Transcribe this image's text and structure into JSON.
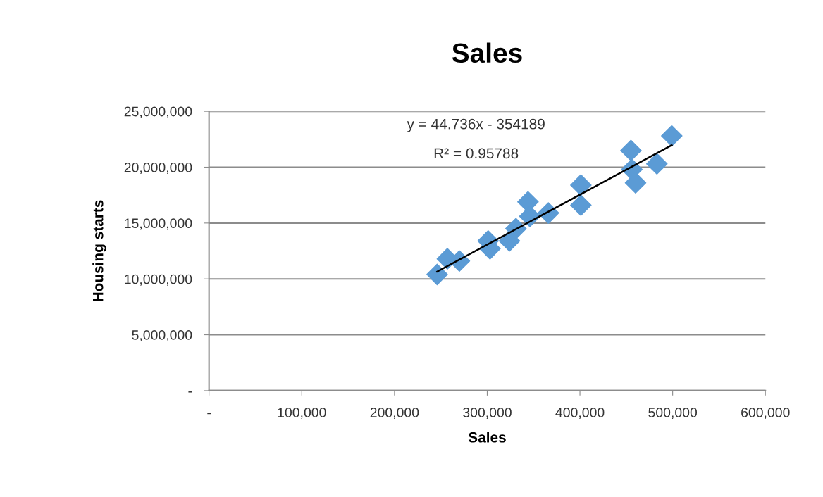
{
  "chart_data": {
    "type": "scatter",
    "title": "Sales",
    "xlabel": "Sales",
    "ylabel": "Housing starts",
    "annotations": [
      "y = 44.736x - 354189",
      "R² = 0.95788"
    ],
    "series": [
      {
        "marker": "diamond",
        "color": "#5b9bd5",
        "x": [
          246000,
          257000,
          270000,
          301000,
          303000,
          324000,
          331000,
          344000,
          346000,
          366000,
          401000,
          401000,
          455000,
          456000,
          460000,
          483000,
          499000
        ],
        "values": [
          10400000,
          11800000,
          11600000,
          13400000,
          12700000,
          13400000,
          14500000,
          16900000,
          15600000,
          15900000,
          18400000,
          16600000,
          21500000,
          19800000,
          18600000,
          20300000,
          22800000
        ]
      },
      {
        "type": "line",
        "marker": "none",
        "color": "#000000",
        "x": [
          246000,
          499000
        ],
        "values": [
          10650000,
          21970000
        ]
      }
    ],
    "xlim": [
      0,
      600000
    ],
    "xticks": [
      {
        "value": 0,
        "label": "-"
      },
      {
        "value": 100000,
        "label": "100,000"
      },
      {
        "value": 200000,
        "label": "200,000"
      },
      {
        "value": 300000,
        "label": "300,000"
      },
      {
        "value": 400000,
        "label": "400,000"
      },
      {
        "value": 500000,
        "label": "500,000"
      },
      {
        "value": 600000,
        "label": "600,000"
      }
    ],
    "ylim": [
      0,
      25000000
    ],
    "yticks": [
      {
        "value": 0,
        "label": "-"
      },
      {
        "value": 5000000,
        "label": "5,000,000"
      },
      {
        "value": 10000000,
        "label": "10,000,000"
      },
      {
        "value": 15000000,
        "label": "15,000,000"
      },
      {
        "value": 20000000,
        "label": "20,000,000"
      },
      {
        "value": 25000000,
        "label": "25,000,000"
      }
    ],
    "grid": "y"
  }
}
